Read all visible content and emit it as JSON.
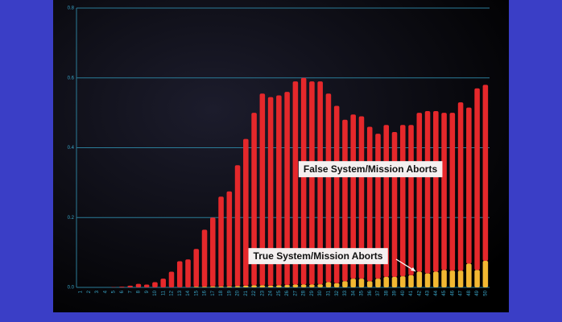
{
  "chart_data": {
    "type": "stacked-bar",
    "categories": [
      "1",
      "2",
      "3",
      "4",
      "5",
      "6",
      "7",
      "8",
      "9",
      "10",
      "11",
      "12",
      "13",
      "14",
      "15",
      "16",
      "17",
      "18",
      "19",
      "20",
      "21",
      "22",
      "23",
      "24",
      "25",
      "26",
      "27",
      "28",
      "29",
      "30",
      "31",
      "32",
      "33",
      "34",
      "35",
      "36",
      "37",
      "38",
      "39",
      "40",
      "41",
      "42",
      "43",
      "44",
      "45",
      "46",
      "47",
      "48",
      "49",
      "50"
    ],
    "series": [
      {
        "name": "True System/Mission Aborts",
        "color": "#f2b832",
        "values": [
          0,
          0,
          0,
          0,
          0,
          0,
          0,
          0,
          0,
          0,
          0,
          0,
          0,
          0,
          0.002,
          0.002,
          0.003,
          0.003,
          0.003,
          0.004,
          0.005,
          0.006,
          0.006,
          0.005,
          0.006,
          0.007,
          0.008,
          0.008,
          0.008,
          0.009,
          0.015,
          0.012,
          0.018,
          0.025,
          0.025,
          0.018,
          0.025,
          0.03,
          0.03,
          0.032,
          0.035,
          0.045,
          0.04,
          0.045,
          0.05,
          0.048,
          0.048,
          0.068,
          0.05,
          0.076
        ]
      },
      {
        "name": "False System/Mission Aborts",
        "color": "#e5282b",
        "values": [
          0,
          0,
          0,
          0,
          0.001,
          0.002,
          0.005,
          0.01,
          0.008,
          0.015,
          0.025,
          0.045,
          0.075,
          0.08,
          0.108,
          0.163,
          0.197,
          0.257,
          0.272,
          0.346,
          0.42,
          0.494,
          0.549,
          0.54,
          0.544,
          0.553,
          0.582,
          0.592,
          0.582,
          0.581,
          0.54,
          0.508,
          0.462,
          0.47,
          0.465,
          0.442,
          0.415,
          0.435,
          0.415,
          0.433,
          0.43,
          0.455,
          0.465,
          0.46,
          0.45,
          0.452,
          0.482,
          0.447,
          0.52,
          0.504
        ]
      }
    ],
    "annotations": [
      "False System/Mission Aborts",
      "True System/Mission Aborts"
    ],
    "ylim": [
      0,
      0.8
    ],
    "yticks": [
      {
        "value": 0,
        "label": "0.0"
      },
      0.2,
      0.4,
      0.6,
      0.8
    ],
    "grid": true
  }
}
